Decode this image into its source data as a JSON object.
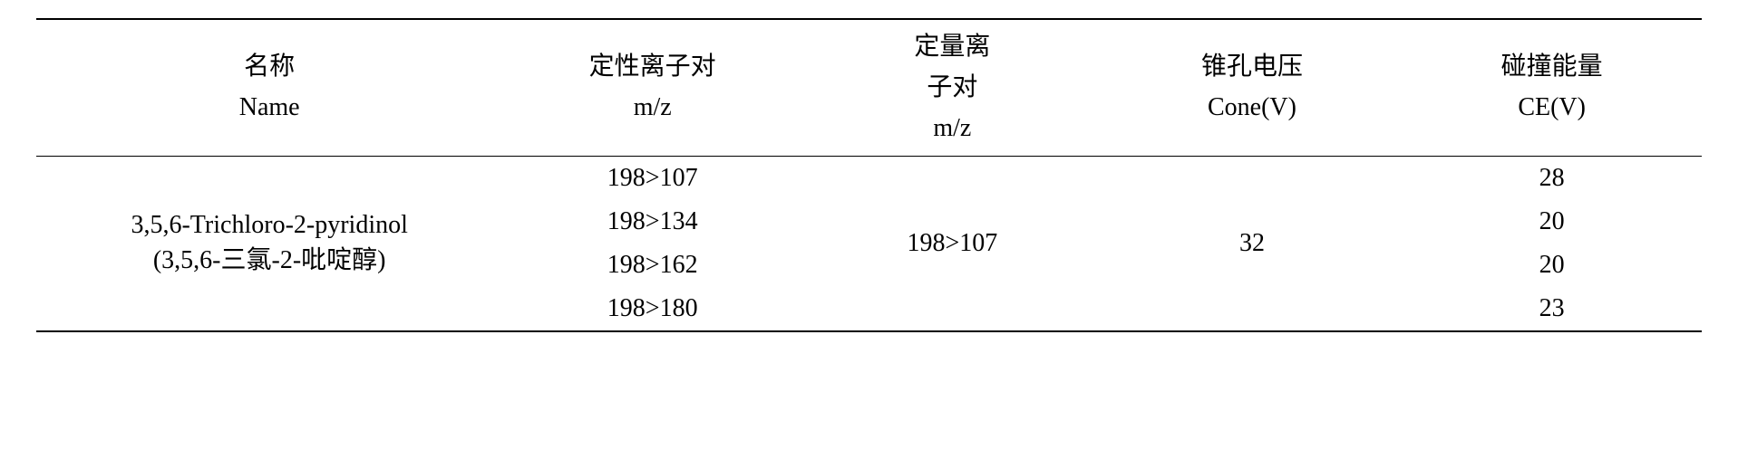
{
  "table": {
    "headers": {
      "name_cn": "名称",
      "name_en": "Name",
      "qual_cn": "定性离子对",
      "qual_unit": "m/z",
      "quant_cn_line1": "定量离",
      "quant_cn_line2": "子对",
      "quant_unit": "m/z",
      "cone_cn": "锥孔电压",
      "cone_en": "Cone(V)",
      "ce_cn": "碰撞能量",
      "ce_en": "CE(V)"
    },
    "row": {
      "name_en": "3,5,6-Trichloro-2-pyridinol",
      "name_cn": "(3,5,6-三氯-2-吡啶醇)",
      "qual_ions": [
        "198>107",
        "198>134",
        "198>162",
        "198>180"
      ],
      "quant_ion": "198>107",
      "cone": "32",
      "ce_values": [
        "28",
        "20",
        "20",
        "23"
      ]
    }
  }
}
